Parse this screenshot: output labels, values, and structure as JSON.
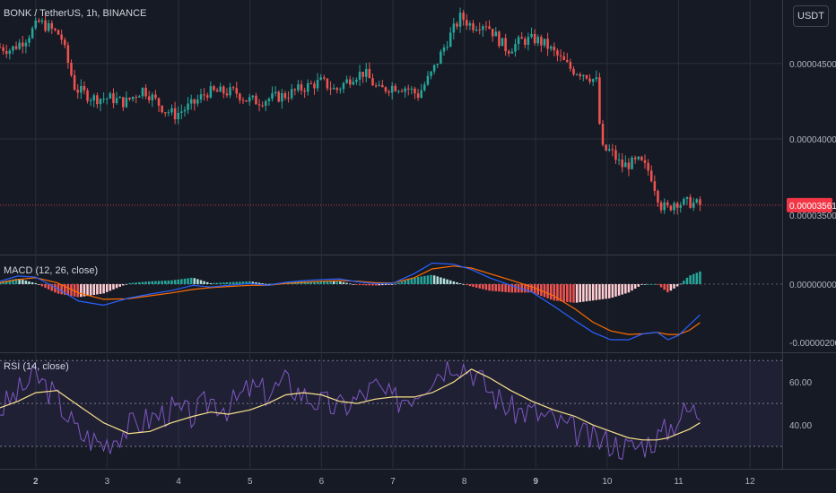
{
  "header": {
    "symbol_legend": "BONK / TetherUS, 1h, BINANCE",
    "currency_button": "USDT"
  },
  "colors": {
    "background": "#161a25",
    "grid": "#2a2e39",
    "up": "#26a69a",
    "down": "#ef5350",
    "macd_line": "#2962ff",
    "signal_line": "#ff6d00",
    "rsi_line": "#7e57c2",
    "rsi_ma": "#f7e08a",
    "last_price": "#f23645",
    "rsi_band": "#7e57c2"
  },
  "chart_data": [
    {
      "type": "candlestick",
      "title": "BONK / TetherUS, 1h, BINANCE",
      "x_ticks": [
        "2",
        "3",
        "4",
        "5",
        "6",
        "7",
        "8",
        "9",
        "10",
        "11",
        "12"
      ],
      "y_ticks": [
        "0.00004000",
        "0.00004500"
      ],
      "y_tick_values": [
        4e-05,
        4.5e-05
      ],
      "ylim": [
        3.24e-05,
        4.92e-05
      ],
      "xlim": [
        1.5,
        12.45
      ],
      "last_price": 3.561e-05,
      "last_price_label": "0.00003561",
      "last_price_ghost_label": "0.00003500",
      "num_candles": 217,
      "anchors": [
        [
          1.5,
          4.608e-05
        ],
        [
          1.65,
          4.59e-05
        ],
        [
          1.85,
          4.66e-05
        ],
        [
          2.05,
          4.775e-05
        ],
        [
          2.2,
          4.73e-05
        ],
        [
          2.35,
          4.685e-05
        ],
        [
          2.55,
          4.335e-05
        ],
        [
          2.8,
          4.27e-05
        ],
        [
          3.05,
          4.27e-05
        ],
        [
          3.25,
          4.24e-05
        ],
        [
          3.5,
          4.33e-05
        ],
        [
          3.6,
          4.29e-05
        ],
        [
          3.8,
          4.195e-05
        ],
        [
          3.95,
          4.16e-05
        ],
        [
          4.2,
          4.23e-05
        ],
        [
          4.4,
          4.31e-05
        ],
        [
          4.6,
          4.31e-05
        ],
        [
          4.8,
          4.31e-05
        ],
        [
          4.95,
          4.26e-05
        ],
        [
          5.1,
          4.25e-05
        ],
        [
          5.3,
          4.27e-05
        ],
        [
          5.5,
          4.29e-05
        ],
        [
          5.75,
          4.34e-05
        ],
        [
          6.0,
          4.38e-05
        ],
        [
          6.2,
          4.32e-05
        ],
        [
          6.45,
          4.42e-05
        ],
        [
          6.6,
          4.44e-05
        ],
        [
          6.8,
          4.32e-05
        ],
        [
          7.0,
          4.35e-05
        ],
        [
          7.2,
          4.34e-05
        ],
        [
          7.35,
          4.29e-05
        ],
        [
          7.55,
          4.44e-05
        ],
        [
          7.75,
          4.64e-05
        ],
        [
          7.95,
          4.81e-05
        ],
        [
          8.1,
          4.75e-05
        ],
        [
          8.3,
          4.77e-05
        ],
        [
          8.45,
          4.675e-05
        ],
        [
          8.6,
          4.59e-05
        ],
        [
          8.8,
          4.65e-05
        ],
        [
          9.0,
          4.66e-05
        ],
        [
          9.15,
          4.62e-05
        ],
        [
          9.3,
          4.55e-05
        ],
        [
          9.5,
          4.46e-05
        ],
        [
          9.7,
          4.43e-05
        ],
        [
          9.85,
          4.38e-05
        ],
        [
          9.92,
          3.93e-05
        ],
        [
          10.05,
          3.92e-05
        ],
        [
          10.2,
          3.82e-05
        ],
        [
          10.45,
          3.85e-05
        ],
        [
          10.6,
          3.78e-05
        ],
        [
          10.75,
          3.56e-05
        ],
        [
          10.85,
          3.535e-05
        ],
        [
          10.95,
          3.59e-05
        ],
        [
          11.05,
          3.57e-05
        ],
        [
          11.15,
          3.58e-05
        ],
        [
          11.3,
          3.561e-05
        ]
      ]
    },
    {
      "type": "line",
      "title": "MACD (12, 26, close)",
      "legend_label": "MACD (12, 26, close)",
      "y_ticks": [
        "0.00000000",
        "-0.00000200"
      ],
      "y_tick_values": [
        0,
        -2e-06
      ],
      "ylim": [
        -2.3e-06,
        9.5e-07
      ],
      "series": [
        {
          "values": [
            1e-07,
            2.8e-07,
            2.4e-07,
            -1.5e-07,
            -5.8e-07,
            -7.2e-07,
            -4.8e-07,
            -3.4e-07,
            -2.2e-07,
            -4e-08,
            -1e-07,
            -4e-08,
            2e-08,
            -4e-08,
            6e-08,
            1.2e-07,
            1.6e-07,
            1.8e-07,
            8e-08,
            2e-08,
            3e-08,
            3.6e-07,
            7.2e-07,
            6.8e-07,
            5e-07,
            2.2e-07,
            -4e-08,
            -2.8e-07,
            -7.5e-07,
            -1.25e-06,
            -1.65e-06,
            -1.9e-06,
            -1.9e-06,
            -1.7e-06,
            -1.65e-06,
            -1.9e-06,
            -1.75e-06,
            -1.4e-06,
            -1.05e-06
          ]
        },
        {
          "values": [
            5e-08,
            1.6e-07,
            2.2e-07,
            5e-08,
            -3e-07,
            -5.2e-07,
            -5e-07,
            -4e-07,
            -3e-07,
            -1.8e-07,
            -1.2e-07,
            -8e-08,
            -4e-08,
            -4e-08,
            2e-08,
            6e-08,
            1e-07,
            1.2e-07,
            1e-07,
            5e-08,
            4e-08,
            2.2e-07,
            5.2e-07,
            6.2e-07,
            5.5e-07,
            3.6e-07,
            1.4e-07,
            -1e-07,
            -4e-07,
            -8.5e-07,
            -1.3e-06,
            -1.6e-06,
            -1.72e-06,
            -1.7e-06,
            -1.65e-06,
            -1.72e-06,
            -1.72e-06,
            -1.58e-06,
            -1.32e-06
          ]
        }
      ],
      "x": [
        1.5,
        1.75,
        2.0,
        2.3,
        2.6,
        2.95,
        3.3,
        3.6,
        3.9,
        4.2,
        4.45,
        4.7,
        5.0,
        5.25,
        5.5,
        5.75,
        6.0,
        6.25,
        6.5,
        6.75,
        7.0,
        7.3,
        7.55,
        7.85,
        8.1,
        8.35,
        8.65,
        8.95,
        9.25,
        9.55,
        9.8,
        10.05,
        10.3,
        10.5,
        10.7,
        10.85,
        11.0,
        11.15,
        11.3
      ]
    },
    {
      "type": "line",
      "title": "RSI (14, close)",
      "legend_label": "RSI (14, close)",
      "y_ticks": [
        "60.00",
        "40.00"
      ],
      "y_tick_values": [
        60,
        40
      ],
      "band_upper": 70,
      "band_middle": 50,
      "band_lower": 30,
      "ylim": [
        20,
        73
      ],
      "series": [
        {
          "values": [
            47,
            55,
            63,
            52,
            36,
            31,
            39,
            43,
            47,
            44,
            52,
            48,
            57,
            55,
            60,
            54,
            50,
            48,
            52,
            58,
            51,
            55,
            63,
            70,
            66,
            56,
            47,
            46,
            42,
            37,
            33,
            32,
            29,
            31,
            34,
            38,
            44,
            47,
            46
          ]
        },
        {
          "values": [
            48,
            51,
            55,
            56,
            49,
            41,
            36,
            37,
            41,
            44,
            46,
            45,
            47,
            50,
            54,
            55,
            54,
            51,
            50,
            52,
            53,
            53,
            55,
            60,
            66,
            62,
            56,
            51,
            47,
            44,
            40,
            37,
            34,
            33,
            33,
            34,
            36,
            38,
            41
          ]
        }
      ],
      "x": [
        1.5,
        1.75,
        2.0,
        2.3,
        2.6,
        2.95,
        3.3,
        3.6,
        3.9,
        4.2,
        4.45,
        4.7,
        5.0,
        5.25,
        5.5,
        5.75,
        6.0,
        6.25,
        6.5,
        6.75,
        7.0,
        7.3,
        7.55,
        7.85,
        8.1,
        8.35,
        8.65,
        8.95,
        9.25,
        9.55,
        9.8,
        10.05,
        10.3,
        10.5,
        10.7,
        10.85,
        11.0,
        11.15,
        11.3
      ]
    }
  ]
}
